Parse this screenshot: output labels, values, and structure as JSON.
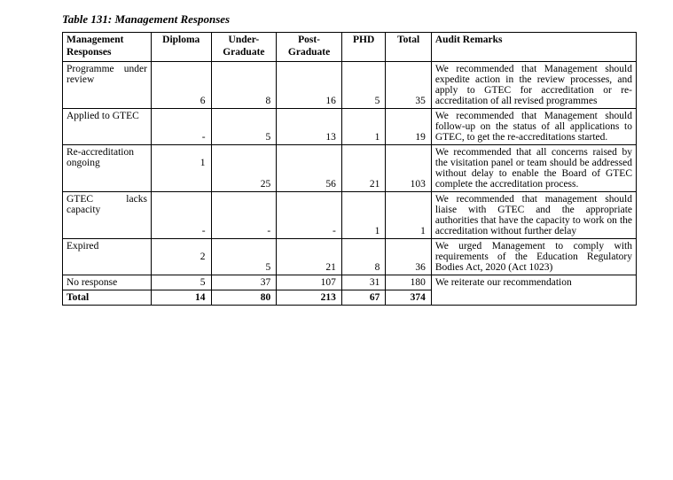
{
  "title": "Table 131: Management Responses",
  "columns": {
    "responses": "Management Responses",
    "diploma": "Diploma",
    "under": "Under-Graduate",
    "post": "Post-Graduate",
    "phd": "PHD",
    "total": "Total",
    "remarks": "Audit Remarks"
  },
  "rows": {
    "r1": {
      "label": "Programme under review",
      "diploma": "6",
      "under": "8",
      "post": "16",
      "phd": "5",
      "total": "35",
      "remark": "We recommended that Management should expedite action in the review processes, and apply to GTEC for accreditation or re-accreditation of all revised programmes"
    },
    "r2": {
      "label": "Applied to GTEC",
      "diploma": "-",
      "under": "5",
      "post": "13",
      "phd": "1",
      "total": "19",
      "remark": "We recommended that Management should follow-up on the status of all applications to GTEC, to get the re-accreditations started."
    },
    "r3": {
      "label": "Re-accreditation ongoing",
      "diploma_a": "1",
      "diploma_b": "",
      "under": "25",
      "post": "56",
      "phd": "21",
      "total": "103",
      "remark": "We recommended that all concerns raised by the visitation panel or team should be addressed without delay to enable the Board of GTEC complete the accreditation process."
    },
    "r4": {
      "label": "GTEC lacks capacity",
      "diploma": "-",
      "under": "-",
      "post": "-",
      "phd": "1",
      "total": "1",
      "remark": "We recommended that management should liaise with GTEC and the appropriate authorities that have the capacity to work on the accreditation without further delay"
    },
    "r5": {
      "label": "Expired",
      "diploma_a": "2",
      "diploma_b": "",
      "under": "5",
      "post": "21",
      "phd": "8",
      "total": "36",
      "remark": "We urged Management to comply with requirements of the Education Regulatory Bodies Act, 2020 (Act 1023)"
    },
    "r6": {
      "label": "No response",
      "diploma": "5",
      "under": "37",
      "post": "107",
      "phd": "31",
      "total": "180",
      "remark": "We reiterate our recommendation"
    },
    "r7": {
      "label": "Total",
      "diploma": "14",
      "under": "80",
      "post": "213",
      "phd": "67",
      "total": "374"
    }
  }
}
